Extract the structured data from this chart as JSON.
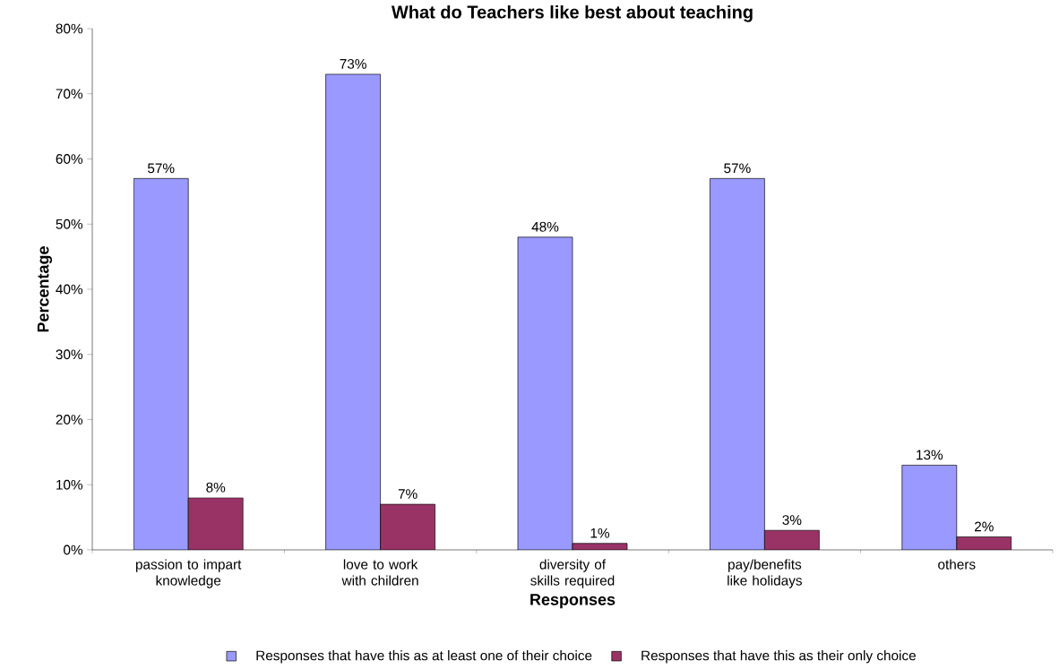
{
  "chart_data": {
    "type": "bar",
    "title": "What do Teachers like best about teaching",
    "xlabel": "Responses",
    "ylabel": "Percentage",
    "categories": [
      "passion to impart knowledge",
      "love to work with children",
      "diversity of skills required",
      "pay/benefits like holidays",
      "others"
    ],
    "series": [
      {
        "name": "Responses that have this as at least one of their choice",
        "color": "#9999ff",
        "values": [
          57,
          73,
          48,
          57,
          13
        ],
        "value_labels": [
          "57%",
          "73%",
          "48%",
          "57%",
          "13%"
        ]
      },
      {
        "name": "Responses that have this as their only choice",
        "color": "#993366",
        "values": [
          8,
          7,
          1,
          3,
          2
        ],
        "value_labels": [
          "8%",
          "7%",
          "1%",
          "3%",
          "2%"
        ]
      }
    ],
    "ylim": [
      0,
      80
    ],
    "yticks": [
      {
        "value": 0,
        "label": "0%"
      },
      {
        "value": 10,
        "label": "10%"
      },
      {
        "value": 20,
        "label": "20%"
      },
      {
        "value": 30,
        "label": "30%"
      },
      {
        "value": 40,
        "label": "40%"
      },
      {
        "value": 50,
        "label": "50%"
      },
      {
        "value": 60,
        "label": "60%"
      },
      {
        "value": 70,
        "label": "70%"
      },
      {
        "value": 80,
        "label": "80%"
      }
    ],
    "grid": false,
    "legend": "bottom"
  }
}
